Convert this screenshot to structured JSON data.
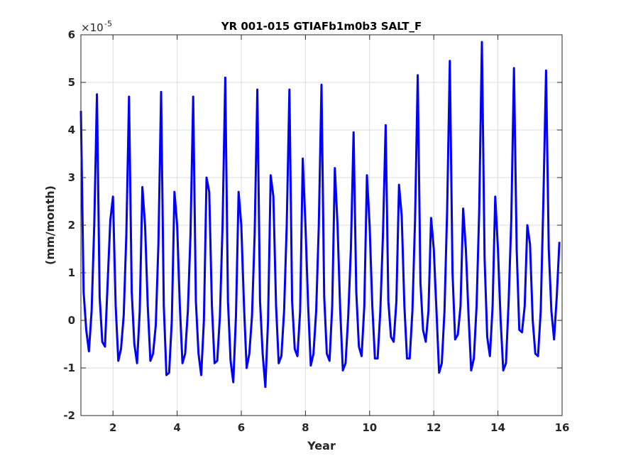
{
  "chart_data": {
    "type": "line",
    "title": "YR 001-015 GTIAFb1m0b3 SALT_F",
    "xlabel": "Year",
    "ylabel": "(mm/month)",
    "y_multiplier": "×10",
    "y_exponent": "-5",
    "xlim": [
      1,
      16
    ],
    "ylim": [
      -2,
      6
    ],
    "grid": true,
    "xticks": [
      2,
      4,
      6,
      8,
      10,
      12,
      14,
      16
    ],
    "xtick_labels": [
      "2",
      "4",
      "6",
      "8",
      "10",
      "12",
      "14",
      "16"
    ],
    "yticks": [
      -2,
      -1,
      0,
      1,
      2,
      3,
      4,
      5,
      6
    ],
    "ytick_labels": [
      "-2",
      "-1",
      "0",
      "1",
      "2",
      "3",
      "4",
      "5",
      "6"
    ],
    "series": [
      {
        "color": "#0000ff",
        "x": [
          1.0,
          1.0833,
          1.1667,
          1.25,
          1.3333,
          1.4167,
          1.5,
          1.5833,
          1.6667,
          1.75,
          1.8333,
          1.9167,
          2.0,
          2.0833,
          2.1667,
          2.25,
          2.3333,
          2.4167,
          2.5,
          2.5833,
          2.6667,
          2.75,
          2.8333,
          2.9167,
          3.0,
          3.0833,
          3.1667,
          3.25,
          3.3333,
          3.4167,
          3.5,
          3.5833,
          3.6667,
          3.75,
          3.8333,
          3.9167,
          4.0,
          4.0833,
          4.1667,
          4.25,
          4.3333,
          4.4167,
          4.5,
          4.5833,
          4.6667,
          4.75,
          4.8333,
          4.9167,
          5.0,
          5.0833,
          5.1667,
          5.25,
          5.3333,
          5.4167,
          5.5,
          5.5833,
          5.6667,
          5.75,
          5.8333,
          5.9167,
          6.0,
          6.0833,
          6.1667,
          6.25,
          6.3333,
          6.4167,
          6.5,
          6.5833,
          6.6667,
          6.75,
          6.8333,
          6.9167,
          7.0,
          7.0833,
          7.1667,
          7.25,
          7.3333,
          7.4167,
          7.5,
          7.5833,
          7.6667,
          7.75,
          7.8333,
          7.9167,
          8.0,
          8.0833,
          8.1667,
          8.25,
          8.3333,
          8.4167,
          8.5,
          8.5833,
          8.6667,
          8.75,
          8.8333,
          8.9167,
          9.0,
          9.0833,
          9.1667,
          9.25,
          9.3333,
          9.4167,
          9.5,
          9.5833,
          9.6667,
          9.75,
          9.8333,
          9.9167,
          10.0,
          10.0833,
          10.1667,
          10.25,
          10.3333,
          10.4167,
          10.5,
          10.5833,
          10.6667,
          10.75,
          10.8333,
          10.9167,
          11.0,
          11.0833,
          11.1667,
          11.25,
          11.3333,
          11.4167,
          11.5,
          11.5833,
          11.6667,
          11.75,
          11.8333,
          11.9167,
          12.0,
          12.0833,
          12.1667,
          12.25,
          12.3333,
          12.4167,
          12.5,
          12.5833,
          12.6667,
          12.75,
          12.8333,
          12.9167,
          13.0,
          13.0833,
          13.1667,
          13.25,
          13.3333,
          13.4167,
          13.5,
          13.5833,
          13.6667,
          13.75,
          13.8333,
          13.9167,
          14.0,
          14.0833,
          14.1667,
          14.25,
          14.3333,
          14.4167,
          14.5,
          14.5833,
          14.6667,
          14.75,
          14.8333,
          14.9167,
          15.0,
          15.0833,
          15.1667,
          15.25,
          15.3333,
          15.4167,
          15.5,
          15.5833,
          15.6667,
          15.75,
          15.8333,
          15.9167
        ],
        "y": [
          4.4,
          0.6,
          -0.2,
          -0.65,
          0.2,
          2.0,
          4.75,
          0.5,
          -0.45,
          -0.55,
          0.8,
          2.1,
          2.6,
          0.3,
          -0.85,
          -0.6,
          0.1,
          1.8,
          4.7,
          0.6,
          -0.5,
          -0.9,
          0.2,
          2.8,
          2.0,
          0.3,
          -0.85,
          -0.7,
          -0.1,
          1.6,
          4.8,
          0.3,
          -1.15,
          -1.1,
          0.0,
          2.7,
          2.0,
          0.3,
          -0.9,
          -0.7,
          0.2,
          1.8,
          4.7,
          0.4,
          -0.7,
          -1.15,
          0.0,
          3.0,
          2.7,
          0.3,
          -0.9,
          -0.85,
          0.1,
          2.0,
          5.1,
          0.4,
          -0.85,
          -1.3,
          0.1,
          2.7,
          2.0,
          0.3,
          -1.0,
          -0.7,
          0.1,
          1.8,
          4.85,
          0.4,
          -0.7,
          -1.4,
          0.0,
          3.05,
          2.6,
          0.3,
          -0.9,
          -0.75,
          0.2,
          2.0,
          4.85,
          0.4,
          -0.6,
          -0.75,
          0.2,
          3.4,
          2.0,
          0.3,
          -0.95,
          -0.7,
          0.2,
          2.0,
          4.95,
          0.5,
          -0.7,
          -0.85,
          0.3,
          3.2,
          2.0,
          0.2,
          -1.05,
          -0.9,
          0.1,
          1.5,
          3.95,
          0.6,
          -0.55,
          -0.75,
          0.3,
          3.05,
          2.0,
          0.3,
          -0.8,
          -0.8,
          0.2,
          1.8,
          4.1,
          0.4,
          -0.35,
          -0.45,
          0.4,
          2.85,
          2.2,
          0.3,
          -0.8,
          -0.8,
          0.2,
          2.1,
          5.15,
          0.8,
          -0.2,
          -0.45,
          0.2,
          2.15,
          1.5,
          0.2,
          -1.1,
          -0.9,
          0.2,
          2.3,
          5.45,
          1.0,
          -0.4,
          -0.3,
          0.3,
          2.35,
          1.5,
          0.1,
          -1.05,
          -0.8,
          0.3,
          2.3,
          5.85,
          1.3,
          -0.35,
          -0.75,
          0.3,
          2.6,
          1.5,
          0.0,
          -1.05,
          -0.9,
          0.4,
          2.1,
          5.3,
          1.5,
          -0.2,
          -0.25,
          0.3,
          2.0,
          1.6,
          0.0,
          -0.7,
          -0.75,
          0.2,
          2.5,
          5.25,
          1.5,
          0.2,
          -0.4,
          0.5,
          1.65
        ]
      }
    ]
  }
}
